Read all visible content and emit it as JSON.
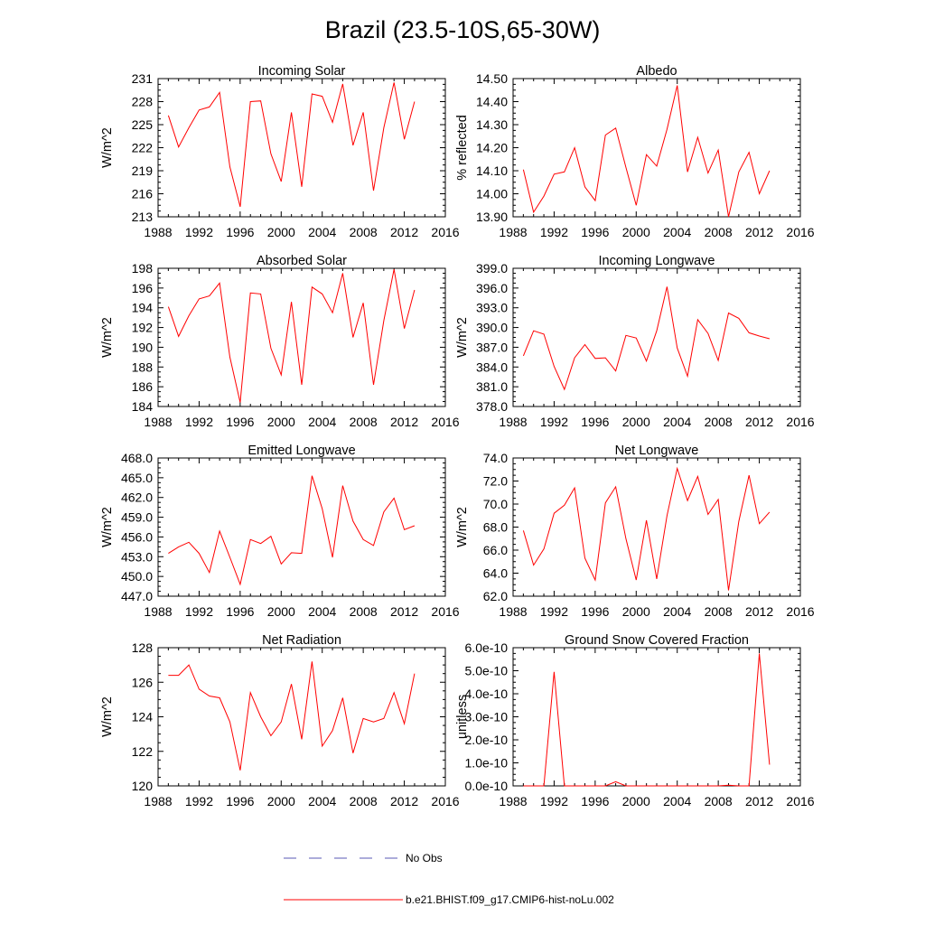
{
  "title": "Brazil (23.5-10S,65-30W)",
  "legend": {
    "obs_label": "No Obs",
    "obs_color": "#5a5ab4",
    "model_label": "b.e21.BHIST.f09_g17.CMIP6-hist-noLu.002",
    "model_color": "#ff0000"
  },
  "chart_data": [
    {
      "type": "line",
      "title": "Incoming Solar",
      "xlabel": "",
      "ylabel": "W/m^2",
      "xlim": [
        1988,
        2016
      ],
      "ylim": [
        213,
        231
      ],
      "xticks": [
        "1988",
        "1992",
        "1996",
        "2000",
        "2004",
        "2008",
        "2012",
        "2016"
      ],
      "yticks": [
        "213",
        "216",
        "219",
        "222",
        "225",
        "228",
        "231"
      ],
      "x": [
        1989,
        1990,
        1991,
        1992,
        1993,
        1994,
        1995,
        1996,
        1997,
        1998,
        1999,
        2000,
        2001,
        2002,
        2003,
        2004,
        2005,
        2006,
        2007,
        2008,
        2009,
        2010,
        2011,
        2012,
        2013
      ],
      "series": [
        {
          "name": "b.e21.BHIST.f09_g17.CMIP6-hist-noLu.002",
          "values": [
            226.2,
            222.1,
            224.6,
            226.9,
            227.3,
            229.2,
            219.5,
            214.3,
            228.0,
            228.1,
            221.2,
            217.6,
            226.6,
            216.9,
            229.0,
            228.7,
            225.3,
            230.3,
            222.3,
            226.6,
            216.4,
            224.6,
            230.5,
            223.1,
            228.0
          ]
        }
      ]
    },
    {
      "type": "line",
      "title": "Albedo",
      "xlabel": "",
      "ylabel": "% reflected",
      "xlim": [
        1988,
        2016
      ],
      "ylim": [
        13.9,
        14.5
      ],
      "xticks": [
        "1988",
        "1992",
        "1996",
        "2000",
        "2004",
        "2008",
        "2012",
        "2016"
      ],
      "yticks": [
        "13.90",
        "14.00",
        "14.10",
        "14.20",
        "14.30",
        "14.40",
        "14.50"
      ],
      "x": [
        1989,
        1990,
        1991,
        1992,
        1993,
        1994,
        1995,
        1996,
        1997,
        1998,
        1999,
        2000,
        2001,
        2002,
        2003,
        2004,
        2005,
        2006,
        2007,
        2008,
        2009,
        2010,
        2011,
        2012,
        2013
      ],
      "series": [
        {
          "name": "b.e21.BHIST.f09_g17.CMIP6-hist-noLu.002",
          "values": [
            14.105,
            13.92,
            13.99,
            14.085,
            14.095,
            14.2,
            14.03,
            13.97,
            14.255,
            14.285,
            14.115,
            13.95,
            14.17,
            14.12,
            14.28,
            14.47,
            14.095,
            14.245,
            14.09,
            14.19,
            13.9,
            14.095,
            14.18,
            14.0,
            14.1
          ]
        }
      ]
    },
    {
      "type": "line",
      "title": "Absorbed Solar",
      "xlabel": "",
      "ylabel": "W/m^2",
      "xlim": [
        1988,
        2016
      ],
      "ylim": [
        184,
        198
      ],
      "xticks": [
        "1988",
        "1992",
        "1996",
        "2000",
        "2004",
        "2008",
        "2012",
        "2016"
      ],
      "yticks": [
        "184",
        "186",
        "188",
        "190",
        "192",
        "194",
        "196",
        "198"
      ],
      "x": [
        1989,
        1990,
        1991,
        1992,
        1993,
        1994,
        1995,
        1996,
        1997,
        1998,
        1999,
        2000,
        2001,
        2002,
        2003,
        2004,
        2005,
        2006,
        2007,
        2008,
        2009,
        2010,
        2011,
        2012,
        2013
      ],
      "series": [
        {
          "name": "b.e21.BHIST.f09_g17.CMIP6-hist-noLu.002",
          "values": [
            194.1,
            191.1,
            193.2,
            194.9,
            195.2,
            196.5,
            189.0,
            184.4,
            195.5,
            195.4,
            189.9,
            187.2,
            194.6,
            186.2,
            196.1,
            195.4,
            193.5,
            197.5,
            191.0,
            194.5,
            186.2,
            192.7,
            197.9,
            191.9,
            195.8
          ]
        }
      ]
    },
    {
      "type": "line",
      "title": "Incoming Longwave",
      "xlabel": "",
      "ylabel": "W/m^2",
      "xlim": [
        1988,
        2016
      ],
      "ylim": [
        378,
        399
      ],
      "xticks": [
        "1988",
        "1992",
        "1996",
        "2000",
        "2004",
        "2008",
        "2012",
        "2016"
      ],
      "yticks": [
        "378.0",
        "381.0",
        "384.0",
        "387.0",
        "390.0",
        "393.0",
        "396.0",
        "399.0"
      ],
      "x": [
        1989,
        1990,
        1991,
        1992,
        1993,
        1994,
        1995,
        1996,
        1997,
        1998,
        1999,
        2000,
        2001,
        2002,
        2003,
        2004,
        2005,
        2006,
        2007,
        2008,
        2009,
        2010,
        2011,
        2012,
        2013
      ],
      "series": [
        {
          "name": "b.e21.BHIST.f09_g17.CMIP6-hist-noLu.002",
          "values": [
            385.7,
            389.5,
            389.0,
            384.1,
            380.6,
            385.4,
            387.4,
            385.3,
            385.4,
            383.4,
            388.8,
            388.4,
            384.9,
            389.5,
            396.2,
            386.9,
            382.6,
            391.2,
            389.1,
            385.0,
            392.2,
            391.4,
            389.2,
            388.7,
            388.3
          ]
        }
      ]
    },
    {
      "type": "line",
      "title": "Emitted Longwave",
      "xlabel": "",
      "ylabel": "W/m^2",
      "xlim": [
        1988,
        2016
      ],
      "ylim": [
        447,
        468
      ],
      "xticks": [
        "1988",
        "1992",
        "1996",
        "2000",
        "2004",
        "2008",
        "2012",
        "2016"
      ],
      "yticks": [
        "447.0",
        "450.0",
        "453.0",
        "456.0",
        "459.0",
        "462.0",
        "465.0",
        "468.0"
      ],
      "x": [
        1989,
        1990,
        1991,
        1992,
        1993,
        1994,
        1995,
        1996,
        1997,
        1998,
        1999,
        2000,
        2001,
        2002,
        2003,
        2004,
        2005,
        2006,
        2007,
        2008,
        2009,
        2010,
        2011,
        2012,
        2013
      ],
      "series": [
        {
          "name": "b.e21.BHIST.f09_g17.CMIP6-hist-noLu.002",
          "values": [
            453.5,
            454.5,
            455.2,
            453.5,
            450.6,
            456.9,
            452.9,
            448.8,
            455.6,
            455.0,
            456.1,
            451.9,
            453.6,
            453.5,
            465.3,
            460.3,
            452.9,
            463.8,
            458.4,
            455.6,
            454.7,
            459.8,
            461.9,
            457.1,
            457.7
          ]
        }
      ]
    },
    {
      "type": "line",
      "title": "Net Longwave",
      "xlabel": "",
      "ylabel": "W/m^2",
      "xlim": [
        1988,
        2016
      ],
      "ylim": [
        62,
        74
      ],
      "xticks": [
        "1988",
        "1992",
        "1996",
        "2000",
        "2004",
        "2008",
        "2012",
        "2016"
      ],
      "yticks": [
        "62.0",
        "64.0",
        "66.0",
        "68.0",
        "70.0",
        "72.0",
        "74.0"
      ],
      "x": [
        1989,
        1990,
        1991,
        1992,
        1993,
        1994,
        1995,
        1996,
        1997,
        1998,
        1999,
        2000,
        2001,
        2002,
        2003,
        2004,
        2005,
        2006,
        2007,
        2008,
        2009,
        2010,
        2011,
        2012,
        2013
      ],
      "series": [
        {
          "name": "b.e21.BHIST.f09_g17.CMIP6-hist-noLu.002",
          "values": [
            67.7,
            64.7,
            66.1,
            69.2,
            69.9,
            71.4,
            65.3,
            63.4,
            70.1,
            71.5,
            67.0,
            63.4,
            68.6,
            63.5,
            69.0,
            73.1,
            70.3,
            72.4,
            69.1,
            70.4,
            62.5,
            68.5,
            72.5,
            68.3,
            69.3
          ]
        }
      ]
    },
    {
      "type": "line",
      "title": "Net Radiation",
      "xlabel": "",
      "ylabel": "W/m^2",
      "xlim": [
        1988,
        2016
      ],
      "ylim": [
        120,
        128
      ],
      "xticks": [
        "1988",
        "1992",
        "1996",
        "2000",
        "2004",
        "2008",
        "2012",
        "2016"
      ],
      "yticks": [
        "120",
        "122",
        "124",
        "126",
        "128"
      ],
      "x": [
        1989,
        1990,
        1991,
        1992,
        1993,
        1994,
        1995,
        1996,
        1997,
        1998,
        1999,
        2000,
        2001,
        2002,
        2003,
        2004,
        2005,
        2006,
        2007,
        2008,
        2009,
        2010,
        2011,
        2012,
        2013
      ],
      "series": [
        {
          "name": "b.e21.BHIST.f09_g17.CMIP6-hist-noLu.002",
          "values": [
            126.4,
            126.4,
            127.0,
            125.6,
            125.2,
            125.1,
            123.7,
            120.9,
            125.4,
            124.0,
            122.9,
            123.7,
            125.9,
            122.7,
            127.2,
            122.3,
            123.2,
            125.1,
            121.9,
            123.9,
            123.7,
            123.9,
            125.4,
            123.6,
            126.5
          ]
        }
      ]
    },
    {
      "type": "line",
      "title": "Ground Snow Covered Fraction",
      "xlabel": "",
      "ylabel": "unitless",
      "xlim": [
        1988,
        2016
      ],
      "ylim": [
        0,
        6e-10
      ],
      "xticks": [
        "1988",
        "1992",
        "1996",
        "2000",
        "2004",
        "2008",
        "2012",
        "2016"
      ],
      "yticks": [
        "0.0e-10",
        "1.0e-10",
        "2.0e-10",
        "3.0e-10",
        "4.0e-10",
        "5.0e-10",
        "6.0e-10"
      ],
      "x": [
        1989,
        1990,
        1991,
        1992,
        1993,
        1994,
        1995,
        1996,
        1997,
        1998,
        1999,
        2000,
        2001,
        2002,
        2003,
        2004,
        2005,
        2006,
        2007,
        2008,
        2009,
        2010,
        2011,
        2012,
        2013
      ],
      "series": [
        {
          "name": "b.e21.BHIST.f09_g17.CMIP6-hist-noLu.002",
          "values": [
            0,
            0,
            0,
            4.95e-10,
            0,
            0,
            0,
            0,
            0,
            1.8e-11,
            0,
            0,
            0,
            0,
            0,
            0,
            0,
            0,
            0,
            0,
            3e-12,
            0,
            0,
            5.75e-10,
            9.2e-11
          ]
        }
      ]
    }
  ]
}
